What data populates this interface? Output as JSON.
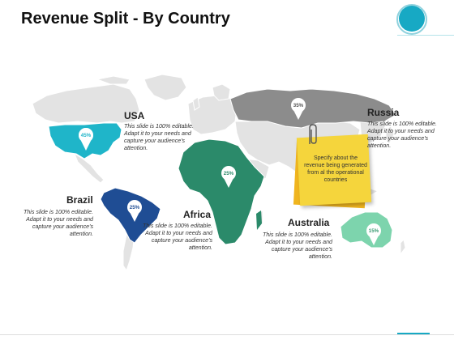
{
  "title": "Revenue Split - By Country",
  "colors": {
    "accent": "#17a9c4",
    "usa": "#1fb5c9",
    "russia": "#8c8c8c",
    "africa": "#2b8a6a",
    "brazil": "#1f4d94",
    "australia": "#7dd4ad",
    "base_map": "#e3e3e3",
    "note": "#f5d53c"
  },
  "regions": [
    {
      "id": "usa",
      "name": "USA",
      "percent": "45%",
      "description": "This slide is 100% editable. Adapt it to your needs and capture your audience's attention."
    },
    {
      "id": "russia",
      "name": "Russia",
      "percent": "35%",
      "description": "This slide is 100% editable. Adapt it to your needs and capture your audience's attention."
    },
    {
      "id": "brazil",
      "name": "Brazil",
      "percent": "25%",
      "description": "This slide is 100% editable. Adapt it to your needs and capture your audience's attention."
    },
    {
      "id": "africa",
      "name": "Africa",
      "percent": "25%",
      "description": "This slide is 100% editable. Adapt it to your needs and capture your audience's attention."
    },
    {
      "id": "australia",
      "name": "Australia",
      "percent": "15%",
      "description": "This slide is 100% editable. Adapt it to your needs and capture your audience's attention."
    }
  ],
  "note": {
    "text": "Specify about the revenue being generated from al the operational countries"
  },
  "icons": {
    "corner": "circle-decoration-icon",
    "pin": "map-pin-icon",
    "clip": "paperclip-icon"
  }
}
